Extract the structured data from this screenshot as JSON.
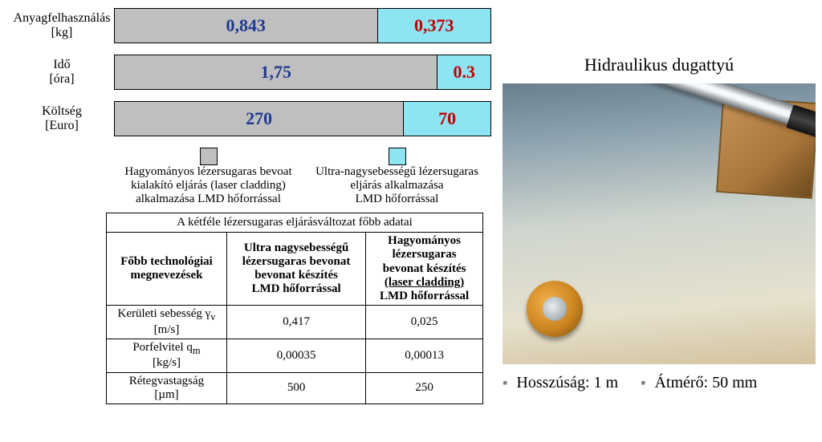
{
  "bars": [
    {
      "label_l1": "Anyagfelhasználás",
      "label_l2": "[kg]",
      "gray_text": "0,843",
      "cyan_text": "0,373",
      "gray_w": 70,
      "cyan_w": 30
    },
    {
      "label_l1": "Idő",
      "label_l2": "[óra]",
      "gray_text": "1,75",
      "cyan_text": "0.3",
      "gray_w": 86,
      "cyan_w": 14
    },
    {
      "label_l1": "Költség",
      "label_l2": "[Euro]",
      "gray_text": "270",
      "cyan_text": "70",
      "gray_w": 77,
      "cyan_w": 23
    }
  ],
  "legend_gray_l1": "Hagyományos lézersugaras bevoat",
  "legend_gray_l2": "kialakító eljárás (laser cladding)",
  "legend_gray_l3": "alkalmazása LMD hőforrással",
  "legend_cyan_l1": "Ultra-nagysebességű lézersugaras",
  "legend_cyan_l2": "eljárás alkalmazása",
  "legend_cyan_l3": "LMD hőforrással",
  "table_caption": "A kétféle lézersugaras eljárásváltozat főbb adatai",
  "table_hdr0_l1": "Főbb technológiai",
  "table_hdr0_l2": "megnevezések",
  "table_hdr1_l1": "Ultra nagysebességű",
  "table_hdr1_l2": "lézersugaras bevonat",
  "table_hdr1_l3": "bevonat készítés",
  "table_hdr1_l4": "LMD hőforrással",
  "table_hdr2_l1": "Hagyományos",
  "table_hdr2_l2": "lézersugaras",
  "table_hdr2_l3": "bevonat készítés",
  "table_hdr2_l4": "(laser cladding)",
  "table_hdr2_l5": "LMD hőforrással",
  "row1_lab": "Kerületi sebesség γ",
  "row1_sub": "v",
  "row1_unit": "[m/s]",
  "row1_c1": "0,417",
  "row1_c2": "0,025",
  "row2_lab": "Porfelvitel q",
  "row2_sub": "m",
  "row2_unit": "[kg/s]",
  "row2_c1": "0,00035",
  "row2_c2": "0,00013",
  "row3_lab": "Rétegvastagság",
  "row3_unit": "[µm]",
  "row3_c1": "500",
  "row3_c2": "250",
  "photo_title": "Hidraulikus dugattyú",
  "dim_len_lab": "Hosszúság:",
  "dim_len_val": "1 m",
  "dim_dia_lab": "Átmérő:",
  "dim_dia_val": "50 mm",
  "colors": {
    "gray": "#bfbfbf",
    "cyan": "#8ee4f2",
    "blue_text": "#1f3b8f",
    "red_text": "#c00000"
  }
}
